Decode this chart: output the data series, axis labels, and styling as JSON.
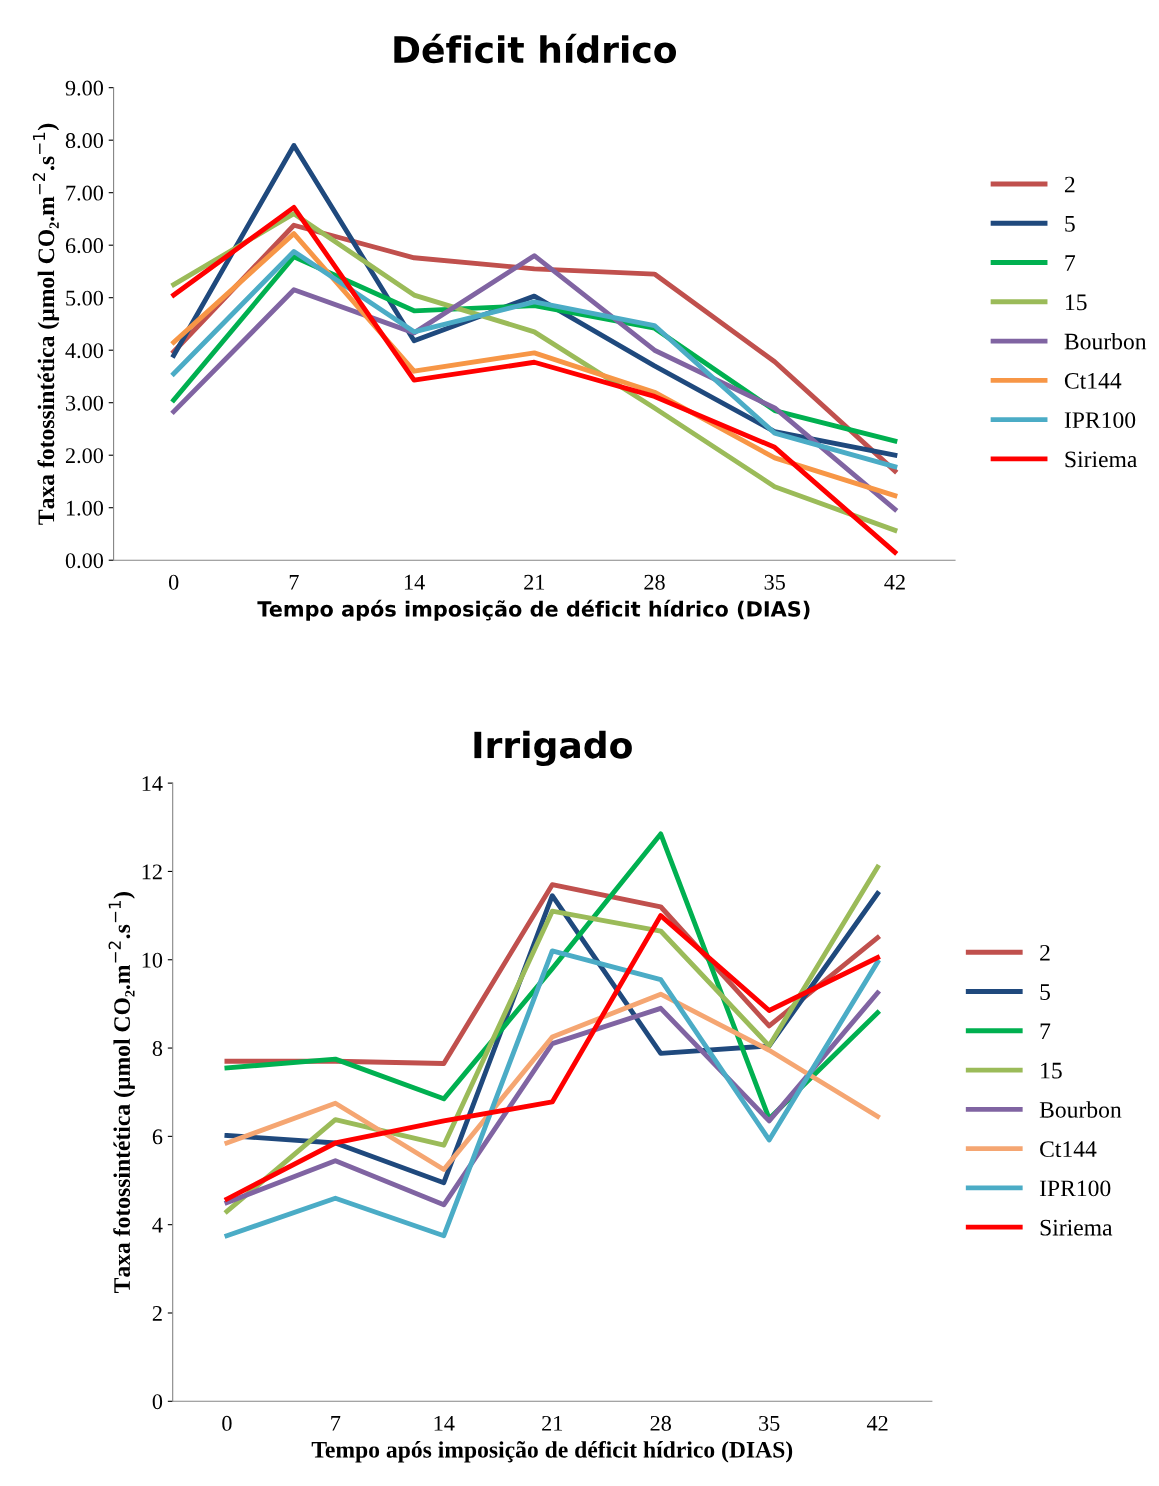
{
  "chart_data": [
    {
      "type": "line",
      "title": "Déficit hídrico",
      "xlabel": "Tempo após imposição de déficit hídrico (DIAS)",
      "ylabel": "Taxa fotossintética (µmol CO₂.m$^{−2}$.s$^{−1}$)",
      "categories": [
        "0",
        "7",
        "14",
        "21",
        "28",
        "35",
        "42"
      ],
      "ylim": [
        0,
        9
      ],
      "yticks": [
        {
          "value": 0,
          "label": "0.00"
        },
        {
          "value": 1,
          "label": "1.00"
        },
        {
          "value": 2,
          "label": "2.00"
        },
        {
          "value": 3,
          "label": "3.00"
        },
        {
          "value": 4,
          "label": "4.00"
        },
        {
          "value": 5,
          "label": "5.00"
        },
        {
          "value": 6,
          "label": "6.00"
        },
        {
          "value": 7,
          "label": "7.00"
        },
        {
          "value": 8,
          "label": "8.00"
        },
        {
          "value": 9,
          "label": "9.00"
        }
      ],
      "grid": false,
      "legend": "right",
      "marker": "none",
      "line_style": "solid",
      "series": [
        {
          "name": "2",
          "color": "#c0504d",
          "values": [
            3.97,
            6.38,
            5.76,
            5.55,
            5.45,
            3.78,
            1.7
          ]
        },
        {
          "name": "5",
          "color": "#1f497d",
          "values": [
            3.9,
            7.9,
            4.18,
            5.03,
            3.7,
            2.45,
            2.0
          ]
        },
        {
          "name": "7",
          "color": "#00b050",
          "values": [
            3.05,
            5.78,
            4.75,
            4.85,
            4.42,
            2.85,
            2.27
          ]
        },
        {
          "name": "15",
          "color": "#9bbb59",
          "values": [
            5.25,
            6.6,
            5.05,
            4.35,
            2.9,
            1.4,
            0.57
          ]
        },
        {
          "name": "Bourbon",
          "color": "#8064a2",
          "values": [
            2.83,
            5.15,
            4.33,
            5.8,
            4.0,
            2.9,
            0.97
          ]
        },
        {
          "name": "Ct144",
          "color": "#f79646",
          "values": [
            4.15,
            6.22,
            3.6,
            3.95,
            3.2,
            1.95,
            1.23
          ]
        },
        {
          "name": "IPR100",
          "color": "#4bacc6",
          "values": [
            3.55,
            5.88,
            4.35,
            4.92,
            4.47,
            2.42,
            1.78
          ]
        },
        {
          "name": "Siriema",
          "color": "#ff0000",
          "values": [
            5.05,
            6.72,
            3.43,
            3.77,
            3.12,
            2.15,
            0.15
          ]
        }
      ]
    },
    {
      "type": "line",
      "title": "Irrigado",
      "xlabel": "Tempo após imposição de déficit hídrico (DIAS)",
      "ylabel": "Taxa fotossintética (µmol CO₂.m$^{−2}$.s$^{−1}$)",
      "categories": [
        "0",
        "7",
        "14",
        "21",
        "28",
        "35",
        "42"
      ],
      "ylim": [
        0,
        14
      ],
      "yticks": [
        0,
        2,
        4,
        6,
        8,
        10,
        12,
        14
      ],
      "grid": false,
      "legend": "right",
      "marker": "none",
      "line_style": "solid",
      "series": [
        {
          "name": "2",
          "color": "#c0504d",
          "values": [
            7.7,
            7.7,
            7.65,
            11.7,
            11.2,
            8.5,
            10.5
          ]
        },
        {
          "name": "5",
          "color": "#1f497d",
          "values": [
            6.02,
            5.85,
            4.95,
            11.45,
            7.88,
            8.05,
            11.5
          ]
        },
        {
          "name": "7",
          "color": "#00b050",
          "values": [
            7.55,
            7.75,
            6.85,
            9.8,
            12.85,
            6.4,
            8.8
          ]
        },
        {
          "name": "15",
          "color": "#9bbb59",
          "values": [
            4.3,
            6.38,
            5.8,
            11.1,
            10.65,
            8.05,
            12.1
          ]
        },
        {
          "name": "Bourbon",
          "color": "#8064a2",
          "values": [
            4.5,
            5.45,
            4.45,
            8.1,
            8.9,
            6.35,
            9.25
          ]
        },
        {
          "name": "Ct144",
          "color": "#f5a672",
          "values": [
            5.85,
            6.75,
            5.25,
            8.25,
            9.22,
            7.95,
            6.45
          ]
        },
        {
          "name": "IPR100",
          "color": "#4bacc6",
          "values": [
            3.75,
            4.6,
            3.75,
            10.2,
            9.55,
            5.92,
            9.95
          ]
        },
        {
          "name": "Siriema",
          "color": "#ff0000",
          "values": [
            4.58,
            5.85,
            6.35,
            6.78,
            11.0,
            8.85,
            10.05
          ]
        }
      ]
    }
  ]
}
